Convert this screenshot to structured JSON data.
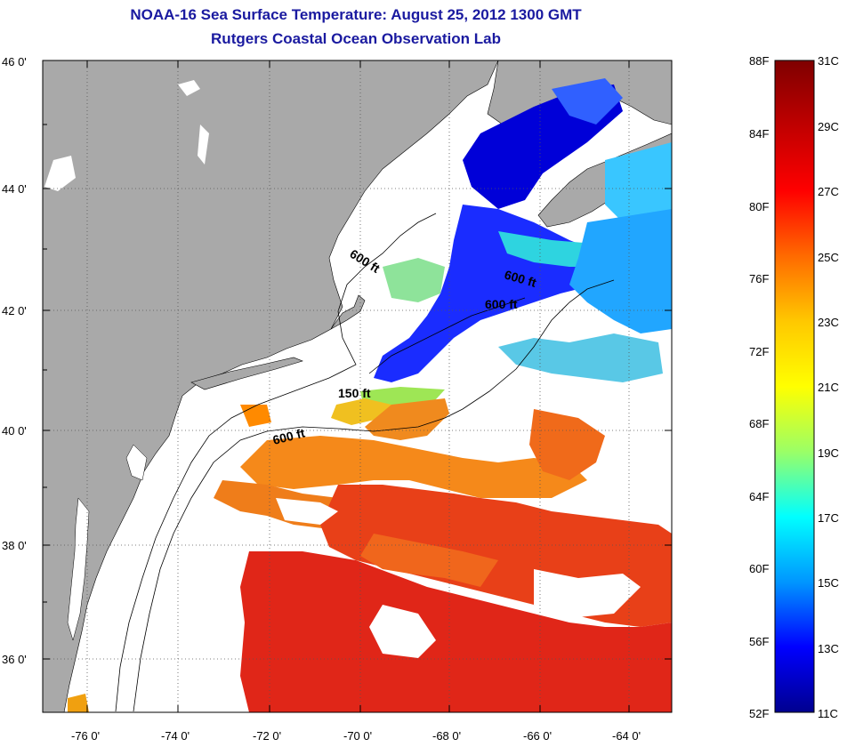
{
  "title": {
    "line1": "NOAA-16 Sea Surface Temperature:  August 25, 2012 1300 GMT",
    "line2": "Rutgers Coastal Ocean Observation Lab"
  },
  "map": {
    "lat_labels": [
      "46 0'",
      "44 0'",
      "42 0'",
      "40 0'",
      "38 0'",
      "36 0'"
    ],
    "lon_labels": [
      "-76 0'",
      "-74 0'",
      "-72 0'",
      "-70 0'",
      "-68 0'",
      "-66 0'",
      "-64 0'"
    ],
    "contour_labels": [
      "600 ft",
      "600 ft",
      "600 ft",
      "150 ft",
      "600 ft"
    ],
    "colors": {
      "land": "#a9a9a9",
      "ocean_no_data": "#ffffff",
      "coast": "#000000",
      "grid": "#555555"
    }
  },
  "colorbar": {
    "fahrenheit": [
      "88F",
      "84F",
      "80F",
      "76F",
      "72F",
      "68F",
      "64F",
      "60F",
      "56F",
      "52F"
    ],
    "celsius": [
      "31C",
      "29C",
      "27C",
      "25C",
      "23C",
      "21C",
      "19C",
      "17C",
      "15C",
      "13C",
      "11C"
    ],
    "gradient": [
      "#7f0000",
      "#c00000",
      "#ff0000",
      "#ff6a00",
      "#ffc800",
      "#ffff00",
      "#9bff66",
      "#00ffff",
      "#0096ff",
      "#0000ff",
      "#00008f"
    ]
  }
}
